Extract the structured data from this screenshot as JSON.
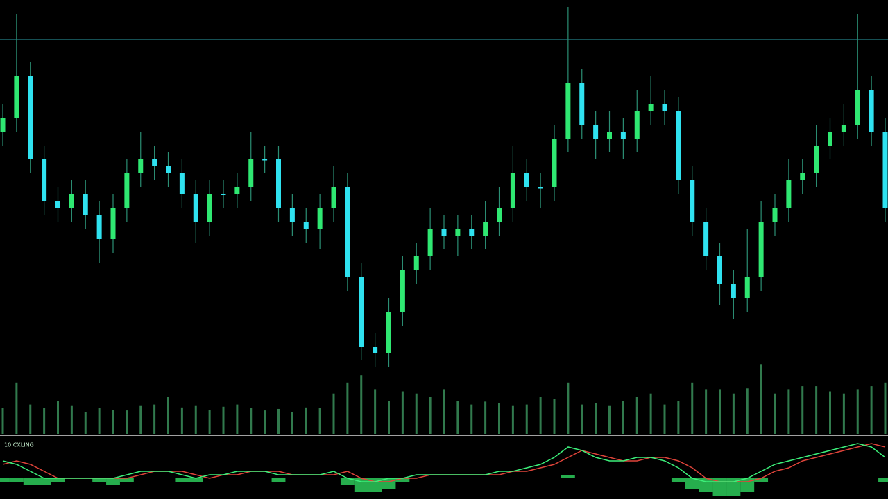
{
  "chart_data": {
    "type": "candlestick",
    "indicator_label": "10 CXLING",
    "ylim": [
      0,
      108
    ],
    "level": 96.6,
    "up_color": "#2fe872",
    "down_color": "#2fe2f0",
    "wick_color": "#2b8f74",
    "level_color": "#1d6a70",
    "open": [
      70,
      74,
      86,
      62,
      50,
      48,
      52,
      46,
      39,
      48,
      58,
      62,
      60,
      58,
      52,
      44,
      52,
      52,
      54,
      62,
      62,
      48,
      44,
      42,
      48,
      54,
      28,
      8,
      6,
      18,
      30,
      34,
      42,
      40,
      42,
      40,
      44,
      48,
      58,
      54,
      54,
      68,
      84,
      72,
      68,
      70,
      68,
      76,
      78,
      76,
      56,
      44,
      34,
      26,
      22,
      28,
      44,
      48,
      56,
      58,
      66,
      70,
      72,
      82,
      70
    ],
    "high": [
      78,
      104,
      90,
      66,
      54,
      56,
      56,
      50,
      52,
      62,
      70,
      66,
      64,
      62,
      56,
      56,
      56,
      58,
      70,
      66,
      66,
      52,
      48,
      52,
      60,
      58,
      32,
      12,
      22,
      34,
      38,
      48,
      46,
      46,
      46,
      50,
      54,
      66,
      62,
      58,
      72,
      106,
      88,
      76,
      76,
      74,
      82,
      86,
      82,
      80,
      60,
      48,
      38,
      30,
      42,
      50,
      52,
      62,
      62,
      72,
      74,
      78,
      104,
      86,
      74
    ],
    "low": [
      66,
      70,
      58,
      46,
      44,
      44,
      42,
      32,
      35,
      44,
      54,
      56,
      54,
      48,
      38,
      40,
      48,
      48,
      50,
      58,
      44,
      40,
      38,
      36,
      44,
      24,
      4,
      2,
      2,
      14,
      26,
      30,
      36,
      34,
      36,
      36,
      40,
      44,
      50,
      48,
      50,
      64,
      68,
      62,
      64,
      62,
      64,
      72,
      72,
      52,
      40,
      30,
      20,
      16,
      18,
      24,
      40,
      44,
      52,
      54,
      62,
      66,
      68,
      66,
      44
    ],
    "close": [
      74,
      86,
      62,
      50,
      48,
      52,
      46,
      39,
      48,
      58,
      62,
      60,
      58,
      52,
      44,
      52,
      52,
      54,
      62,
      62,
      48,
      44,
      42,
      48,
      54,
      28,
      8,
      6,
      18,
      30,
      34,
      42,
      40,
      42,
      40,
      44,
      48,
      58,
      54,
      54,
      68,
      84,
      72,
      68,
      70,
      68,
      76,
      78,
      76,
      56,
      44,
      34,
      26,
      22,
      28,
      44,
      48,
      56,
      58,
      66,
      70,
      72,
      82,
      70,
      48
    ],
    "volume": {
      "color": "#3a8f5a",
      "vlim": [
        0,
        100
      ],
      "values": [
        35,
        70,
        40,
        35,
        45,
        38,
        30,
        35,
        33,
        32,
        38,
        40,
        50,
        36,
        38,
        33,
        37,
        40,
        35,
        32,
        34,
        30,
        36,
        35,
        55,
        70,
        80,
        60,
        45,
        58,
        55,
        50,
        60,
        45,
        40,
        44,
        42,
        38,
        40,
        50,
        48,
        70,
        40,
        42,
        38,
        45,
        50,
        55,
        40,
        45,
        70,
        60,
        60,
        55,
        62,
        95,
        55,
        60,
        65,
        65,
        58,
        55,
        60,
        65,
        70
      ]
    },
    "indicator": {
      "ilim": [
        -6,
        10
      ],
      "hist_color": "#2fd860",
      "series": [
        {
          "color": "#3cf07a",
          "values": [
            5,
            4,
            2,
            0,
            0,
            0,
            0,
            0,
            0,
            1,
            2,
            2,
            2,
            1,
            0,
            1,
            1,
            2,
            2,
            2,
            1,
            1,
            1,
            1,
            2,
            0,
            -1,
            -1,
            0,
            0,
            1,
            1,
            1,
            1,
            1,
            1,
            2,
            2,
            3,
            4,
            6,
            9,
            8,
            6,
            5,
            5,
            6,
            6,
            5,
            3,
            0,
            -1,
            -1,
            -1,
            0,
            2,
            4,
            5,
            6,
            7,
            8,
            9,
            10,
            9,
            6
          ]
        },
        {
          "color": "#e0443a",
          "values": [
            4,
            5,
            4,
            2,
            0,
            0,
            0,
            0,
            0,
            0,
            1,
            2,
            2,
            2,
            1,
            0,
            1,
            1,
            2,
            2,
            2,
            1,
            1,
            1,
            1,
            2,
            0,
            -1,
            -1,
            0,
            0,
            1,
            1,
            1,
            1,
            1,
            1,
            2,
            2,
            3,
            4,
            6,
            8,
            7,
            6,
            5,
            5,
            6,
            6,
            5,
            3,
            0,
            -1,
            -1,
            -1,
            0,
            2,
            3,
            5,
            6,
            7,
            8,
            9,
            10,
            9
          ]
        }
      ],
      "histogram": [
        -1,
        -1,
        -2,
        -2,
        -1,
        0,
        0,
        -1,
        -2,
        -1,
        0,
        0,
        0,
        -1,
        -1,
        0,
        0,
        0,
        0,
        0,
        -1,
        0,
        0,
        0,
        0,
        -2,
        -4,
        -4,
        -3,
        -1,
        0,
        0,
        0,
        0,
        0,
        0,
        0,
        0,
        0,
        0,
        0,
        1,
        0,
        0,
        0,
        0,
        0,
        0,
        0,
        -1,
        -3,
        -4,
        -5,
        -5,
        -4,
        -1,
        0,
        0,
        0,
        0,
        0,
        0,
        0,
        0,
        -1
      ]
    }
  }
}
